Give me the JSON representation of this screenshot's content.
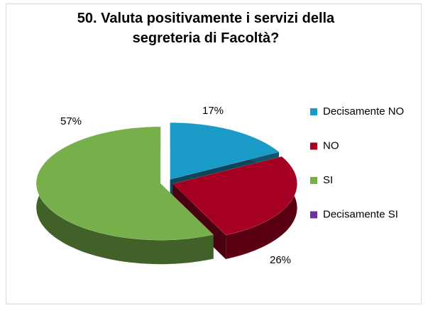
{
  "chart_data": {
    "type": "pie3d",
    "title": "50. Valuta positivamente i servizi della segreteria di Facoltà?",
    "categories": [
      "Decisamente NO",
      "NO",
      "SI",
      "Decisamente SI"
    ],
    "values": [
      17,
      26,
      57,
      0
    ],
    "value_labels": [
      "17%",
      "26%",
      "57%",
      null
    ],
    "colors": [
      "#1a9bc7",
      "#a50021",
      "#77b04a",
      "#7030a0"
    ],
    "legend": "right"
  }
}
